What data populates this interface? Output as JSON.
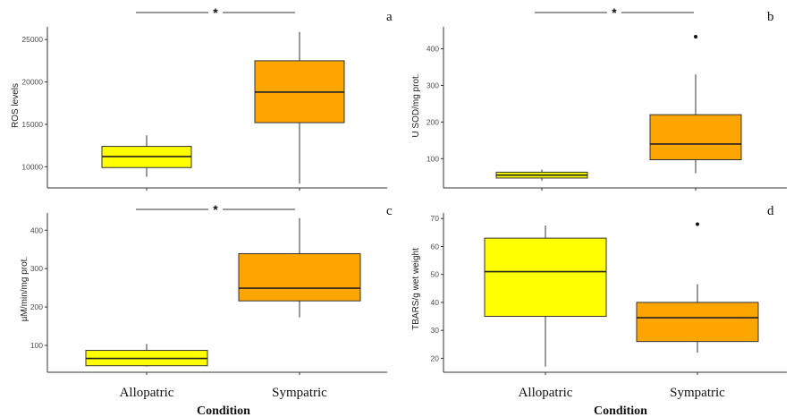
{
  "colors": {
    "allopatric": "#FFFF00",
    "sympatric": "#FFA500",
    "stroke": "#333333"
  },
  "chart_data": [
    {
      "type": "box",
      "panel_label": "a",
      "ylabel": "ROS levels",
      "ylim": [
        7500,
        26500
      ],
      "yticks": [
        10000,
        15000,
        20000,
        25000
      ],
      "categories": [
        "Allopatric",
        "Sympatric"
      ],
      "boxes": [
        {
          "category": "Allopatric",
          "min": 8800,
          "q1": 9900,
          "median": 11200,
          "q3": 12400,
          "max": 13700,
          "outliers": []
        },
        {
          "category": "Sympatric",
          "min": 8000,
          "q1": 15200,
          "median": 18800,
          "q3": 22500,
          "max": 25900,
          "outliers": []
        }
      ],
      "significance": "*",
      "show_x_labels": false
    },
    {
      "type": "box",
      "panel_label": "b",
      "ylabel": "U SOD/mg prot.",
      "ylim": [
        20,
        460
      ],
      "yticks": [
        100,
        200,
        300,
        400
      ],
      "categories": [
        "Allopatric",
        "Sympatric"
      ],
      "boxes": [
        {
          "category": "Allopatric",
          "min": 40,
          "q1": 47,
          "median": 55,
          "q3": 63,
          "max": 70,
          "outliers": []
        },
        {
          "category": "Sympatric",
          "min": 60,
          "q1": 97,
          "median": 140,
          "q3": 220,
          "max": 330,
          "outliers": [
            433
          ]
        }
      ],
      "significance": "*",
      "show_x_labels": false
    },
    {
      "type": "box",
      "panel_label": "c",
      "ylabel": "µM/min/mg prot.",
      "ylim": [
        30,
        445
      ],
      "yticks": [
        100,
        200,
        300,
        400
      ],
      "categories": [
        "Allopatric",
        "Sympatric"
      ],
      "boxes": [
        {
          "category": "Allopatric",
          "min": 45,
          "q1": 47,
          "median": 66,
          "q3": 87,
          "max": 104,
          "outliers": []
        },
        {
          "category": "Sympatric",
          "min": 173,
          "q1": 216,
          "median": 249,
          "q3": 339,
          "max": 432,
          "outliers": []
        }
      ],
      "significance": "*",
      "show_x_labels": true
    },
    {
      "type": "box",
      "panel_label": "d",
      "ylabel": "TBARS/g wet weight",
      "ylim": [
        15,
        72
      ],
      "yticks": [
        20,
        30,
        40,
        50,
        60,
        70
      ],
      "categories": [
        "Allopatric",
        "Sympatric"
      ],
      "boxes": [
        {
          "category": "Allopatric",
          "min": 17,
          "q1": 35,
          "median": 51,
          "q3": 63,
          "max": 67.5,
          "outliers": []
        },
        {
          "category": "Sympatric",
          "min": 22,
          "q1": 26,
          "median": 34.5,
          "q3": 40,
          "max": 46.5,
          "outliers": [
            68
          ]
        }
      ],
      "significance": "",
      "show_x_labels": true
    }
  ],
  "xlabel": "Condition"
}
